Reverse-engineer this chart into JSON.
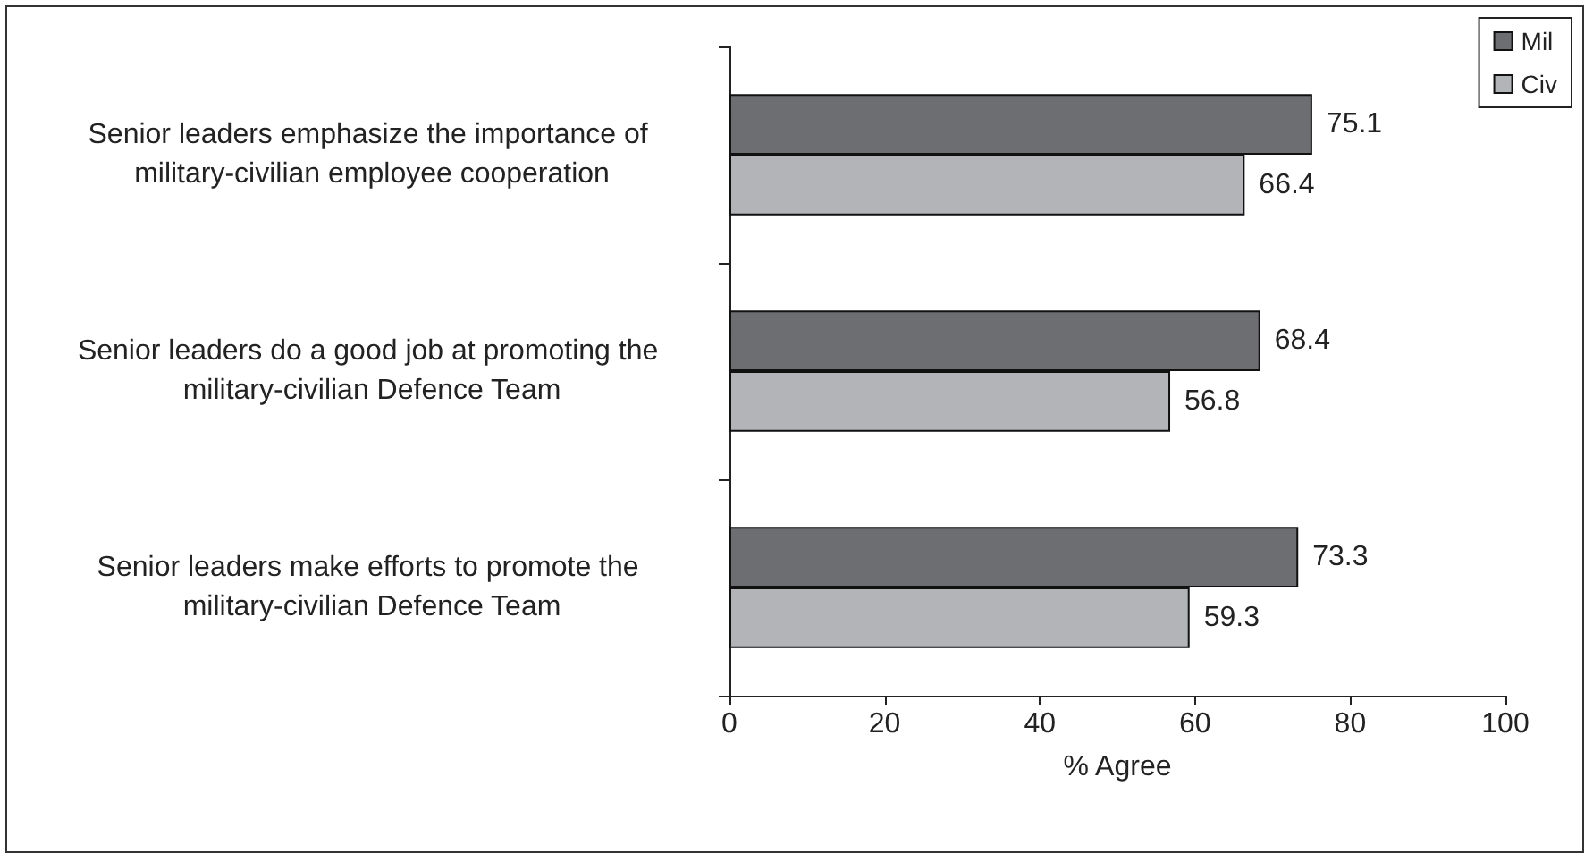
{
  "chart_data": {
    "type": "bar",
    "orientation": "horizontal",
    "xlabel": "% Agree",
    "categories": [
      "Senior leaders emphasize the importance of military-civilian employee cooperation",
      "Senior leaders do a good job at promoting the military-civilian Defence Team",
      "Senior leaders make efforts to promote the military-civilian Defence Team"
    ],
    "series": [
      {
        "name": "Mil",
        "color": "#6d6e71",
        "values": [
          75.1,
          68.4,
          73.3
        ]
      },
      {
        "name": "Civ",
        "color": "#b3b4b8",
        "values": [
          66.4,
          56.8,
          59.3
        ]
      }
    ],
    "xlim": [
      0,
      100
    ],
    "xticks": [
      0,
      20,
      40,
      60,
      80,
      100
    ],
    "data_labels": true,
    "legend": "top right",
    "grid": false
  }
}
